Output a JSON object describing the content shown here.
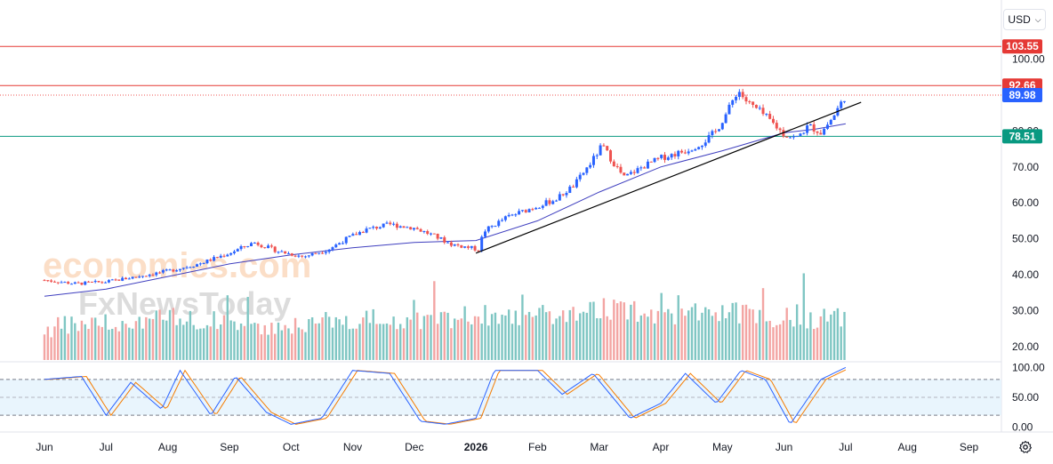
{
  "currency": {
    "label": "USD",
    "icon": "chevron-down-icon"
  },
  "settings": {
    "icon": "gear-icon"
  },
  "watermark": {
    "line1": "economies.com",
    "line2": "FxNewsToday"
  },
  "colors": {
    "up": "#2962ff",
    "down": "#ef5350",
    "vol_up": "#7fc6c3",
    "vol_down": "#f3a5a3",
    "ma": "#3f3fbf",
    "resistance": "#e53935",
    "support": "#089981",
    "trendline": "#000000",
    "stoch_k": "#2962ff",
    "stoch_d": "#f57c00",
    "stoch_band": "#e3f2fd"
  },
  "chart_data": {
    "type": "candlestick",
    "x_labels": [
      {
        "label": "Jun",
        "month": 0
      },
      {
        "label": "Jul",
        "month": 1
      },
      {
        "label": "Aug",
        "month": 2
      },
      {
        "label": "Sep",
        "month": 3
      },
      {
        "label": "Oct",
        "month": 4
      },
      {
        "label": "Nov",
        "month": 5
      },
      {
        "label": "Dec",
        "month": 6
      },
      {
        "label": "2026",
        "month": 7
      },
      {
        "label": "Feb",
        "month": 8
      },
      {
        "label": "Mar",
        "month": 9
      },
      {
        "label": "Apr",
        "month": 10
      },
      {
        "label": "May",
        "month": 11
      },
      {
        "label": "Jun",
        "month": 12
      },
      {
        "label": "Jul",
        "month": 13
      },
      {
        "label": "Aug",
        "month": 14
      },
      {
        "label": "Sep",
        "month": 15
      }
    ],
    "price_axis": {
      "ticks": [
        "20.00",
        "30.00",
        "40.00",
        "50.00",
        "60.00",
        "70.00",
        "80.00",
        "100.00"
      ],
      "tick_values": [
        20,
        30,
        40,
        50,
        60,
        70,
        80,
        100
      ],
      "range": [
        17,
        113
      ]
    },
    "stoch_axis": {
      "ticks": [
        "0.00",
        "50.00",
        "100.00"
      ],
      "tick_values": [
        0,
        50,
        100
      ],
      "range": [
        -5,
        105
      ],
      "bands": [
        20,
        80
      ]
    },
    "levels": [
      {
        "value": 103.55,
        "label": "103.55",
        "role": "resistance",
        "style": "solid"
      },
      {
        "value": 92.66,
        "label": "92.66",
        "role": "resistance",
        "style": "solid"
      },
      {
        "value": 89.98,
        "label": "89.98",
        "role": "last-price",
        "style": "dotted"
      },
      {
        "value": 78.51,
        "label": "78.51",
        "role": "support",
        "style": "solid"
      }
    ],
    "trendline": {
      "start": {
        "month": 7.0,
        "value": 46
      },
      "end": {
        "month": 13.25,
        "value": 88
      }
    },
    "close_points": [
      {
        "m": 0.0,
        "v": 38.5
      },
      {
        "m": 0.5,
        "v": 37.5
      },
      {
        "m": 1.0,
        "v": 38.0
      },
      {
        "m": 1.5,
        "v": 39.5
      },
      {
        "m": 2.0,
        "v": 41.0
      },
      {
        "m": 2.5,
        "v": 43.0
      },
      {
        "m": 3.0,
        "v": 46.0
      },
      {
        "m": 3.4,
        "v": 49.0
      },
      {
        "m": 3.8,
        "v": 46.5
      },
      {
        "m": 4.2,
        "v": 45.0
      },
      {
        "m": 4.6,
        "v": 47.0
      },
      {
        "m": 4.9,
        "v": 50.0
      },
      {
        "m": 5.2,
        "v": 52.5
      },
      {
        "m": 5.6,
        "v": 54.0
      },
      {
        "m": 6.0,
        "v": 53.0
      },
      {
        "m": 6.3,
        "v": 51.0
      },
      {
        "m": 6.6,
        "v": 48.5
      },
      {
        "m": 6.9,
        "v": 47.5
      },
      {
        "m": 7.05,
        "v": 47.0
      },
      {
        "m": 7.12,
        "v": 52.0
      },
      {
        "m": 7.5,
        "v": 56.0
      },
      {
        "m": 7.9,
        "v": 58.5
      },
      {
        "m": 8.3,
        "v": 61.0
      },
      {
        "m": 8.6,
        "v": 65.0
      },
      {
        "m": 8.9,
        "v": 72.0
      },
      {
        "m": 9.05,
        "v": 76.0
      },
      {
        "m": 9.2,
        "v": 72.0
      },
      {
        "m": 9.4,
        "v": 67.0
      },
      {
        "m": 9.7,
        "v": 70.0
      },
      {
        "m": 10.0,
        "v": 72.5
      },
      {
        "m": 10.4,
        "v": 74.5
      },
      {
        "m": 10.7,
        "v": 77.0
      },
      {
        "m": 10.9,
        "v": 80.0
      },
      {
        "m": 11.1,
        "v": 86.0
      },
      {
        "m": 11.25,
        "v": 91.5
      },
      {
        "m": 11.4,
        "v": 88.0
      },
      {
        "m": 11.6,
        "v": 85.5
      },
      {
        "m": 11.8,
        "v": 82.5
      },
      {
        "m": 12.0,
        "v": 79.0
      },
      {
        "m": 12.2,
        "v": 78.0
      },
      {
        "m": 12.4,
        "v": 81.5
      },
      {
        "m": 12.6,
        "v": 79.5
      },
      {
        "m": 12.8,
        "v": 84.0
      },
      {
        "m": 13.0,
        "v": 89.98
      }
    ],
    "moving_average": [
      {
        "m": 0.0,
        "v": 34.0
      },
      {
        "m": 1.0,
        "v": 36.0
      },
      {
        "m": 2.0,
        "v": 39.5
      },
      {
        "m": 3.0,
        "v": 43.0
      },
      {
        "m": 4.0,
        "v": 45.5
      },
      {
        "m": 5.0,
        "v": 47.5
      },
      {
        "m": 6.0,
        "v": 49.0
      },
      {
        "m": 7.0,
        "v": 49.5
      },
      {
        "m": 8.0,
        "v": 55.0
      },
      {
        "m": 9.0,
        "v": 63.0
      },
      {
        "m": 10.0,
        "v": 70.0
      },
      {
        "m": 11.0,
        "v": 74.5
      },
      {
        "m": 11.5,
        "v": 77.0
      },
      {
        "m": 12.0,
        "v": 79.5
      },
      {
        "m": 12.5,
        "v": 80.5
      },
      {
        "m": 13.0,
        "v": 82.0
      }
    ],
    "volume_points": [
      {
        "m": 0.0,
        "v": 24
      },
      {
        "m": 1.0,
        "v": 26
      },
      {
        "m": 2.0,
        "v": 27
      },
      {
        "m": 3.0,
        "v": 26
      },
      {
        "m": 4.0,
        "v": 25
      },
      {
        "m": 5.0,
        "v": 27
      },
      {
        "m": 6.0,
        "v": 26
      },
      {
        "m": 7.0,
        "v": 28
      },
      {
        "m": 8.0,
        "v": 27
      },
      {
        "m": 9.0,
        "v": 30
      },
      {
        "m": 10.0,
        "v": 27
      },
      {
        "m": 11.0,
        "v": 29
      },
      {
        "m": 12.0,
        "v": 27
      },
      {
        "m": 13.0,
        "v": 27
      }
    ],
    "stochastic_points": [
      {
        "m": 0.0,
        "v": 80
      },
      {
        "m": 0.6,
        "v": 85
      },
      {
        "m": 1.0,
        "v": 20
      },
      {
        "m": 1.4,
        "v": 75
      },
      {
        "m": 1.9,
        "v": 30
      },
      {
        "m": 2.2,
        "v": 95
      },
      {
        "m": 2.7,
        "v": 20
      },
      {
        "m": 3.1,
        "v": 85
      },
      {
        "m": 3.6,
        "v": 25
      },
      {
        "m": 4.0,
        "v": 5
      },
      {
        "m": 4.5,
        "v": 15
      },
      {
        "m": 5.0,
        "v": 95
      },
      {
        "m": 5.6,
        "v": 90
      },
      {
        "m": 6.1,
        "v": 10
      },
      {
        "m": 6.5,
        "v": 5
      },
      {
        "m": 7.0,
        "v": 15
      },
      {
        "m": 7.3,
        "v": 95
      },
      {
        "m": 8.0,
        "v": 95
      },
      {
        "m": 8.4,
        "v": 55
      },
      {
        "m": 8.9,
        "v": 90
      },
      {
        "m": 9.5,
        "v": 15
      },
      {
        "m": 10.0,
        "v": 40
      },
      {
        "m": 10.4,
        "v": 90
      },
      {
        "m": 10.9,
        "v": 40
      },
      {
        "m": 11.3,
        "v": 95
      },
      {
        "m": 11.7,
        "v": 80
      },
      {
        "m": 12.1,
        "v": 5
      },
      {
        "m": 12.6,
        "v": 80
      },
      {
        "m": 13.0,
        "v": 100
      }
    ]
  }
}
